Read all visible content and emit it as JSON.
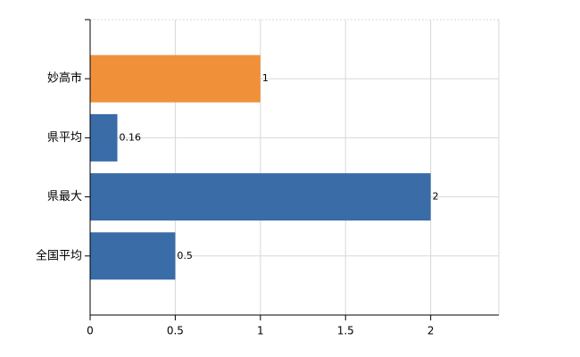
{
  "chart_data": {
    "type": "hbar",
    "categories": [
      "妙高市",
      "県平均",
      "県最大",
      "全国平均"
    ],
    "values": [
      1,
      0.16,
      2,
      0.5
    ],
    "colors": [
      "#f0913a",
      "#3a6ca8",
      "#3a6ca8",
      "#3a6ca8"
    ],
    "xlim": [
      0,
      2.4
    ],
    "xticks": [
      0,
      0.5,
      1,
      1.5,
      2
    ],
    "grid": true
  }
}
